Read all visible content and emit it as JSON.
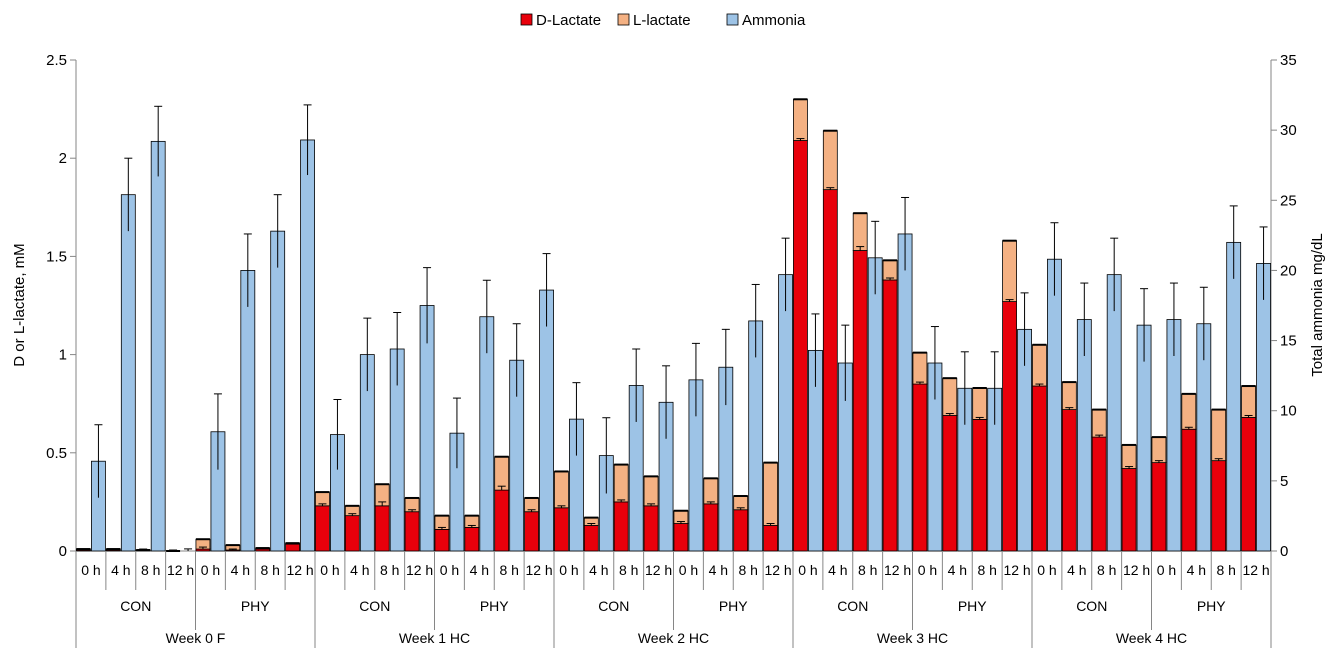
{
  "chart_data": {
    "type": "bar",
    "stacked_series_axis": "left",
    "legend": {
      "placement": "top-center",
      "items": [
        {
          "name": "D-Lactate",
          "color": "#e8000b"
        },
        {
          "name": "L-lactate",
          "color": "#f4b183"
        },
        {
          "name": "Ammonia",
          "color": "#9dc3e6"
        }
      ]
    },
    "ylabel_left": "D or L-lactate, mM",
    "ylabel_right": "Total ammonia mg/dL",
    "ylim_left": [
      0,
      2.5
    ],
    "ylim_right": [
      0,
      35
    ],
    "yticks_left": [
      "0",
      "0.5",
      "1",
      "1.5",
      "2",
      "2.5"
    ],
    "yticks_right": [
      "0",
      "5",
      "10",
      "15",
      "20",
      "25",
      "30",
      "35"
    ],
    "times": [
      "0 h",
      "4 h",
      "8 h",
      "12 h"
    ],
    "treatments": [
      "CON",
      "PHY"
    ],
    "weeks": [
      "Week 0 F",
      "Week 1 HC",
      "Week 2 HC",
      "Week 3 HC",
      "Week 4 HC"
    ],
    "series": [
      {
        "name": "D-Lactate",
        "values": [
          0.005,
          0.005,
          0.005,
          0.0,
          0.01,
          0.005,
          0.01,
          0.035,
          0.23,
          0.18,
          0.23,
          0.2,
          0.11,
          0.12,
          0.31,
          0.2,
          0.22,
          0.13,
          0.25,
          0.23,
          0.14,
          0.24,
          0.21,
          0.13,
          2.09,
          1.84,
          1.53,
          1.38,
          0.85,
          0.69,
          0.67,
          1.27,
          0.84,
          0.72,
          0.58,
          0.42,
          0.45,
          0.62,
          0.46,
          0.68
        ]
      },
      {
        "name": "L-lactate",
        "values": [
          0.005,
          0.005,
          0.0,
          0.0,
          0.05,
          0.025,
          0.005,
          0.005,
          0.07,
          0.05,
          0.11,
          0.07,
          0.07,
          0.06,
          0.17,
          0.07,
          0.185,
          0.04,
          0.19,
          0.15,
          0.065,
          0.13,
          0.07,
          0.32,
          0.21,
          0.3,
          0.19,
          0.1,
          0.16,
          0.19,
          0.16,
          0.31,
          0.21,
          0.14,
          0.14,
          0.12,
          0.13,
          0.18,
          0.26,
          0.16
        ]
      },
      {
        "name": "Ammonia",
        "values": [
          6.4,
          25.4,
          29.2,
          0.0,
          8.5,
          20.0,
          22.8,
          29.3,
          8.3,
          14.0,
          14.4,
          17.5,
          8.4,
          16.7,
          13.6,
          18.6,
          9.4,
          6.8,
          11.8,
          10.6,
          12.2,
          13.1,
          16.4,
          19.7,
          14.3,
          13.4,
          20.9,
          22.6,
          13.4,
          11.6,
          11.6,
          15.8,
          20.8,
          16.5,
          19.7,
          16.1,
          16.5,
          16.2,
          22.0,
          20.5
        ]
      }
    ],
    "ammonia_error": [
      2.6,
      2.6,
      2.5,
      0.0,
      2.7,
      2.6,
      2.6,
      2.5,
      2.5,
      2.6,
      2.6,
      2.7,
      2.5,
      2.6,
      2.6,
      2.6,
      2.6,
      2.7,
      2.6,
      2.6,
      2.6,
      2.7,
      2.6,
      2.6,
      2.6,
      2.7,
      2.6,
      2.6,
      2.6,
      2.6,
      2.6,
      2.6,
      2.6,
      2.6,
      2.6,
      2.6,
      2.6,
      2.6,
      2.6,
      2.6
    ],
    "lactate_error": [
      0.005,
      0.005,
      0.005,
      0.005,
      0.01,
      0.005,
      0.005,
      0.005,
      0.01,
      0.01,
      0.02,
      0.01,
      0.01,
      0.01,
      0.02,
      0.01,
      0.01,
      0.01,
      0.01,
      0.01,
      0.01,
      0.01,
      0.01,
      0.01,
      0.01,
      0.01,
      0.02,
      0.01,
      0.01,
      0.01,
      0.01,
      0.01,
      0.01,
      0.01,
      0.01,
      0.01,
      0.01,
      0.01,
      0.01,
      0.01
    ]
  }
}
